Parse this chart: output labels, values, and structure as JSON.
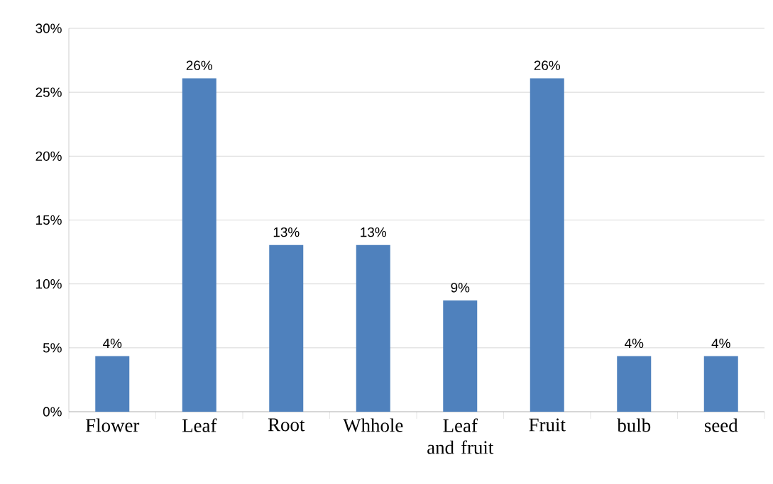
{
  "chart_data": {
    "type": "bar",
    "categories": [
      "Flower",
      "Leaf",
      "Root",
      "Whhole",
      "Leaf and fruit",
      "Fruit",
      "bulb",
      "seed"
    ],
    "values": [
      4.35,
      26.09,
      13.04,
      13.04,
      8.7,
      26.09,
      4.35,
      4.35
    ],
    "value_labels": [
      "4%",
      "26%",
      "13%",
      "13%",
      "9%",
      "26%",
      "4%",
      "4%"
    ],
    "color": "#4f81bd",
    "ylim": [
      0,
      30
    ],
    "yticks": [
      {
        "value": 0,
        "label": "0%"
      },
      {
        "value": 5,
        "label": "5%"
      },
      {
        "value": 10,
        "label": "10%"
      },
      {
        "value": 15,
        "label": "15%"
      },
      {
        "value": 20,
        "label": "20%"
      },
      {
        "value": 25,
        "label": "25%"
      },
      {
        "value": 30,
        "label": "30%"
      }
    ],
    "grid": "y"
  }
}
